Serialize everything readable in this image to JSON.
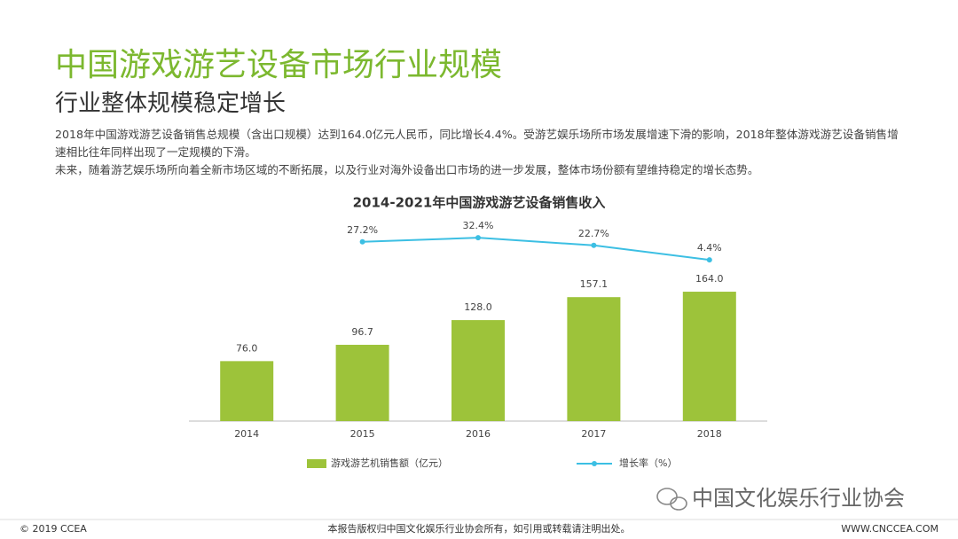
{
  "header": {
    "title": "中国游戏游艺设备市场行业规模",
    "subtitle": "行业整体规模稳定增长"
  },
  "body": {
    "paragraphs": [
      "2018年中国游戏游艺设备销售总规模（含出口规模）达到164.0亿元人民币，同比增长4.4%。受游艺娱乐场所市场发展增速下滑的影响，2018年整体游戏游艺设备销售增速相比往年同样出现了一定规模的下滑。",
      "未来，随着游艺娱乐场所向着全新市场区域的不断拓展，以及行业对海外设备出口市场的进一步发展，整体市场份额有望维持稳定的增长态势。"
    ]
  },
  "chart_data": {
    "type": "bar",
    "title": "2014-2021年中国游戏游艺设备销售收入",
    "categories": [
      "2014",
      "2015",
      "2016",
      "2017",
      "2018"
    ],
    "series": [
      {
        "name": "游戏游艺机销售额（亿元）",
        "color": "#9dc33a",
        "values": [
          76,
          96.7,
          128,
          157.1,
          164
        ],
        "value_labels": [
          "76.0",
          "96.7",
          "128.0",
          "157.1",
          "164.0"
        ]
      },
      {
        "name": "增长率（%）",
        "type": "line",
        "axis": "y2",
        "color": "#3cbfe3",
        "values": [
          null,
          27.2,
          32.4,
          22.7,
          4.4
        ],
        "value_labels": [
          null,
          "27.2%",
          "32.4%",
          "22.7%",
          "4.4%"
        ]
      }
    ],
    "legend": "bottom"
  },
  "watermark": "中国文化娱乐行业协会",
  "footer": {
    "left": "© 2019 CCEA",
    "center": "本报告版权归中国文化娱乐行业协会所有，如引用或转载请注明出处。",
    "right": "WWW.CNCCEA.COM"
  }
}
